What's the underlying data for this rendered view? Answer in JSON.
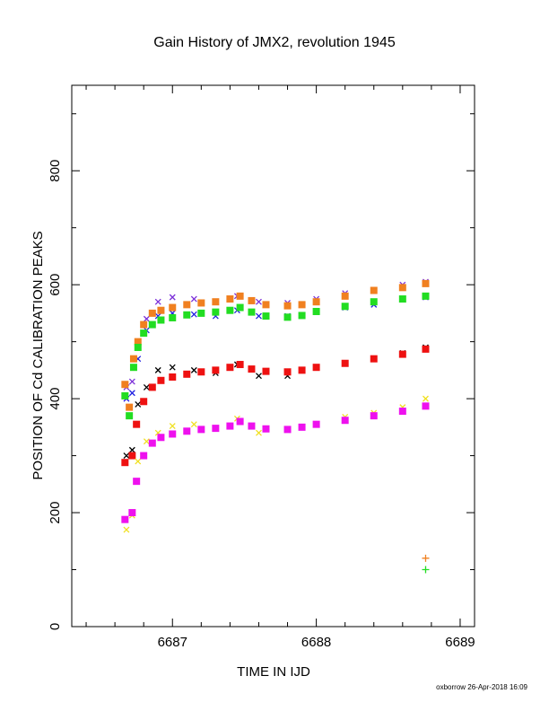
{
  "chart_data": {
    "type": "scatter",
    "title": "Gain History of JMX2, revolution 1945",
    "xlabel": "TIME IN IJD",
    "ylabel": "POSITION OF Cd CALIBRATION PEAKS",
    "xlim": [
      6686.3,
      6689.1
    ],
    "ylim": [
      0,
      950
    ],
    "x_ticks": [
      6687,
      6688,
      6689
    ],
    "x_tick_labels": [
      "6687",
      "6688",
      "6689"
    ],
    "y_ticks": [
      0,
      200,
      400,
      600,
      800
    ],
    "y_tick_labels": [
      "0",
      "200",
      "400",
      "600",
      "800"
    ],
    "grid": false,
    "legend": "none",
    "footer": "oxborrow 26-Apr-2018 16:09",
    "series": [
      {
        "marker": "cross",
        "color": "#7b2fd8",
        "x": [
          6686.68,
          6686.72,
          6686.76,
          6686.82,
          6686.9,
          6687.0,
          6687.15,
          6687.3,
          6687.45,
          6687.6,
          6687.8,
          6688.0,
          6688.2,
          6688.4,
          6688.6,
          6688.76
        ],
        "y": [
          420,
          430,
          490,
          540,
          570,
          578,
          575,
          570,
          580,
          570,
          568,
          575,
          585,
          590,
          600,
          605
        ]
      },
      {
        "marker": "cross",
        "color": "#2020e0",
        "x": [
          6686.68,
          6686.72,
          6686.76,
          6686.82,
          6686.9,
          6687.0,
          6687.15,
          6687.3,
          6687.45,
          6687.6,
          6687.8,
          6688.0,
          6688.2,
          6688.4,
          6688.6,
          6688.76
        ],
        "y": [
          400,
          410,
          470,
          520,
          545,
          550,
          548,
          545,
          555,
          545,
          545,
          552,
          560,
          565,
          575,
          578
        ]
      },
      {
        "marker": "square",
        "color": "#f08020",
        "x": [
          6686.67,
          6686.7,
          6686.73,
          6686.76,
          6686.8,
          6686.86,
          6686.92,
          6687.0,
          6687.1,
          6687.2,
          6687.3,
          6687.4,
          6687.47,
          6687.55,
          6687.65,
          6687.8,
          6687.9,
          6688.0,
          6688.2,
          6688.4,
          6688.6,
          6688.76
        ],
        "y": [
          425,
          385,
          470,
          500,
          530,
          550,
          555,
          560,
          565,
          568,
          570,
          575,
          580,
          572,
          565,
          563,
          565,
          570,
          580,
          590,
          595,
          602
        ]
      },
      {
        "marker": "square",
        "color": "#22dd22",
        "x": [
          6686.67,
          6686.7,
          6686.73,
          6686.76,
          6686.8,
          6686.86,
          6686.92,
          6687.0,
          6687.1,
          6687.2,
          6687.3,
          6687.4,
          6687.47,
          6687.55,
          6687.65,
          6687.8,
          6687.9,
          6688.0,
          6688.2,
          6688.4,
          6688.6,
          6688.76
        ],
        "y": [
          405,
          370,
          455,
          490,
          515,
          530,
          538,
          542,
          547,
          550,
          552,
          555,
          560,
          552,
          545,
          543,
          546,
          553,
          562,
          570,
          575,
          580
        ]
      },
      {
        "marker": "cross",
        "color": "#000000",
        "x": [
          6686.68,
          6686.72,
          6686.76,
          6686.82,
          6686.9,
          6687.0,
          6687.15,
          6687.3,
          6687.45,
          6687.6,
          6687.8,
          6688.0,
          6688.2,
          6688.4,
          6688.6,
          6688.76
        ],
        "y": [
          300,
          310,
          390,
          420,
          450,
          455,
          450,
          445,
          460,
          440,
          440,
          455,
          462,
          470,
          480,
          490
        ]
      },
      {
        "marker": "square",
        "color": "#ee1111",
        "x": [
          6686.67,
          6686.72,
          6686.75,
          6686.8,
          6686.86,
          6686.92,
          6687.0,
          6687.1,
          6687.2,
          6687.3,
          6687.4,
          6687.47,
          6687.55,
          6687.65,
          6687.8,
          6687.9,
          6688.0,
          6688.2,
          6688.4,
          6688.6,
          6688.76
        ],
        "y": [
          288,
          300,
          355,
          395,
          420,
          432,
          438,
          443,
          447,
          450,
          455,
          460,
          452,
          448,
          447,
          450,
          455,
          462,
          470,
          478,
          487
        ]
      },
      {
        "marker": "cross",
        "color": "#f0e020",
        "x": [
          6686.68,
          6686.72,
          6686.76,
          6686.82,
          6686.9,
          6687.0,
          6687.15,
          6687.3,
          6687.45,
          6687.6,
          6687.8,
          6688.0,
          6688.2,
          6688.4,
          6688.6,
          6688.76
        ],
        "y": [
          170,
          195,
          290,
          325,
          340,
          352,
          355,
          348,
          365,
          340,
          345,
          355,
          368,
          375,
          385,
          400
        ]
      },
      {
        "marker": "square",
        "color": "#ee11ee",
        "x": [
          6686.67,
          6686.72,
          6686.75,
          6686.8,
          6686.86,
          6686.92,
          6687.0,
          6687.1,
          6687.2,
          6687.3,
          6687.4,
          6687.47,
          6687.55,
          6687.65,
          6687.8,
          6687.9,
          6688.0,
          6688.2,
          6688.4,
          6688.6,
          6688.76
        ],
        "y": [
          188,
          200,
          255,
          300,
          322,
          332,
          338,
          343,
          346,
          348,
          352,
          360,
          352,
          347,
          346,
          350,
          355,
          362,
          370,
          378,
          387
        ]
      },
      {
        "marker": "plus",
        "color": "#f08020",
        "x": [
          6688.76
        ],
        "y": [
          120
        ]
      },
      {
        "marker": "plus",
        "color": "#22dd22",
        "x": [
          6688.76
        ],
        "y": [
          100
        ]
      }
    ]
  }
}
